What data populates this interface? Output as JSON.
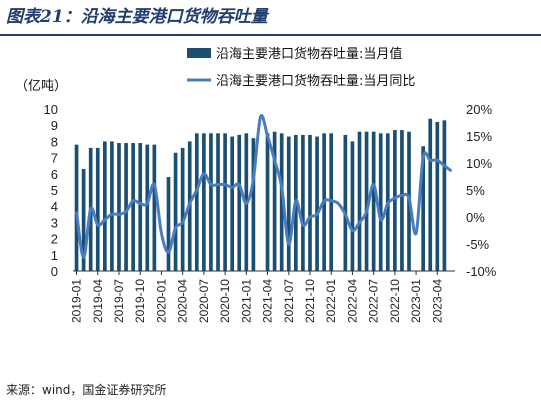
{
  "header": {
    "title": "图表21：沿海主要港口货物吞吐量"
  },
  "footer": {
    "source": "来源：wind，国金证券研究所"
  },
  "chart_data": {
    "type": "bar",
    "y_unit": "（亿吨）",
    "ylim": [
      0,
      10
    ],
    "y2lim": [
      -10,
      20
    ],
    "y_ticks": [
      "0",
      "1",
      "2",
      "3",
      "4",
      "5",
      "6",
      "7",
      "8",
      "9",
      "10"
    ],
    "y2_ticks": [
      "-10%",
      "-5%",
      "0%",
      "5%",
      "10%",
      "15%",
      "20%"
    ],
    "x_tick_labels": [
      "2019-01",
      "2019-04",
      "2019-07",
      "2019-10",
      "2020-01",
      "2020-04",
      "2020-07",
      "2020-10",
      "2021-01",
      "2021-04",
      "2021-07",
      "2021-10",
      "2022-01",
      "2022-04",
      "2022-07",
      "2022-10",
      "2023-01",
      "2023-04"
    ],
    "categories": [
      "2019-01",
      "2019-02",
      "2019-03",
      "2019-04",
      "2019-05",
      "2019-06",
      "2019-07",
      "2019-08",
      "2019-09",
      "2019-10",
      "2019-11",
      "2019-12",
      "2020-01",
      "2020-02",
      "2020-03",
      "2020-04",
      "2020-05",
      "2020-06",
      "2020-07",
      "2020-08",
      "2020-09",
      "2020-10",
      "2020-11",
      "2020-12",
      "2021-01",
      "2021-02",
      "2021-03",
      "2021-04",
      "2021-05",
      "2021-06",
      "2021-07",
      "2021-08",
      "2021-09",
      "2021-10",
      "2021-11",
      "2021-12",
      "2022-01",
      "2022-02",
      "2022-03",
      "2022-04",
      "2022-05",
      "2022-06",
      "2022-07",
      "2022-08",
      "2022-09",
      "2022-10",
      "2022-11",
      "2022-12",
      "2023-01",
      "2023-02",
      "2023-03",
      "2023-04",
      "2023-05",
      "2023-06"
    ],
    "series": [
      {
        "name": "沿海主要港口货物吞吐量:当月值",
        "kind": "bar",
        "axis": "left",
        "color": "#1b4f72",
        "values": [
          7.8,
          6.3,
          7.6,
          7.6,
          8.0,
          8.0,
          7.9,
          7.9,
          7.9,
          7.9,
          7.8,
          7.8,
          null,
          5.8,
          7.3,
          7.6,
          8.0,
          8.5,
          8.5,
          8.5,
          8.5,
          8.5,
          8.3,
          8.4,
          8.5,
          8.2,
          null,
          8.5,
          8.6,
          8.5,
          8.3,
          8.4,
          8.4,
          8.4,
          8.3,
          8.5,
          8.5,
          null,
          8.4,
          8.0,
          8.6,
          8.6,
          8.6,
          8.5,
          8.5,
          8.7,
          8.7,
          8.6,
          null,
          7.7,
          9.4,
          9.2,
          9.3,
          null
        ]
      },
      {
        "name": "沿海主要港口货物吞吐量:当月同比",
        "kind": "line",
        "axis": "right",
        "color": "#4a7cc0",
        "values": [
          1.0,
          -7.5,
          1.5,
          -1.5,
          -0.5,
          0.5,
          0.5,
          1.0,
          3.0,
          2.5,
          2.5,
          6.0,
          -3.0,
          -6.5,
          -2.0,
          -1.0,
          2.5,
          5.0,
          8.0,
          6.0,
          6.0,
          6.0,
          5.5,
          6.0,
          2.5,
          7.0,
          18.5,
          15.0,
          10.5,
          5.5,
          -5.0,
          3.0,
          -1.5,
          0.0,
          0.5,
          3.0,
          3.0,
          2.5,
          0.5,
          -2.5,
          -1.0,
          1.0,
          6.0,
          -0.5,
          2.5,
          3.5,
          4.0,
          3.5,
          -3.0,
          11.0,
          10.5,
          10.5,
          9.5,
          8.5
        ]
      }
    ]
  }
}
